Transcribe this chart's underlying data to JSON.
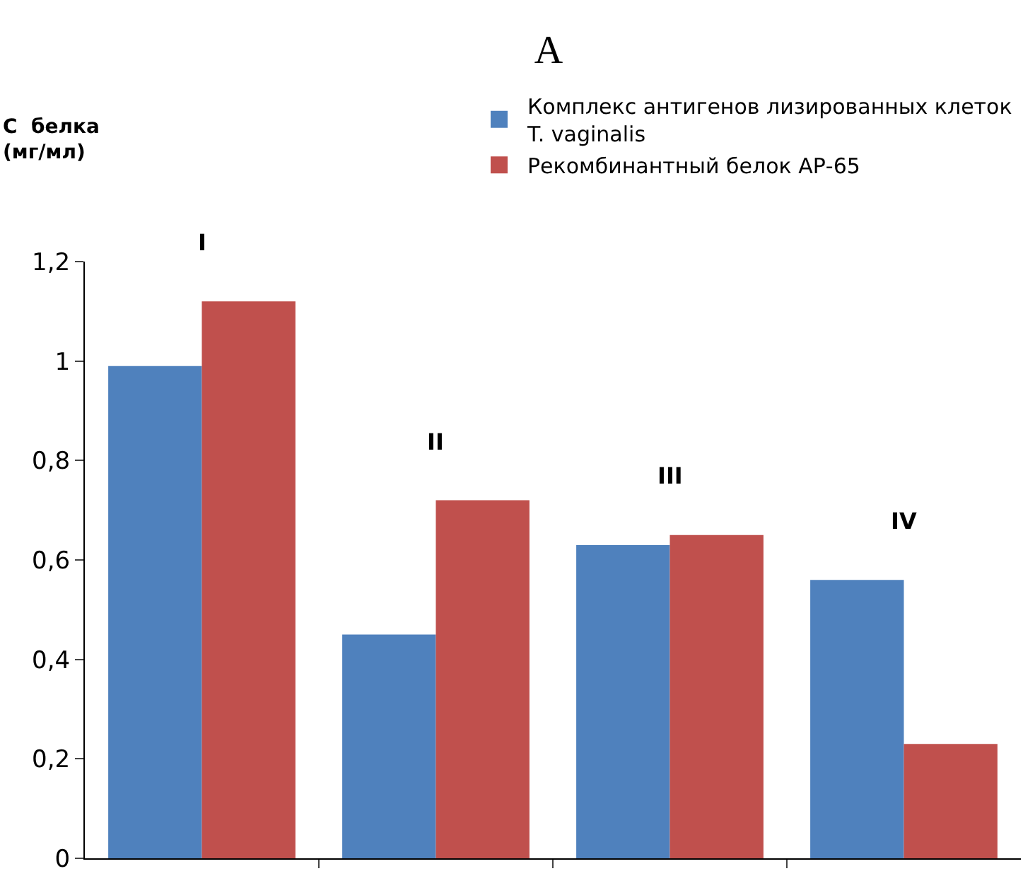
{
  "chart_data": {
    "type": "bar",
    "title": "A",
    "ylabel": "С  белка\n(мг/мл)",
    "categories": [
      null,
      null,
      null,
      null
    ],
    "series": [
      {
        "name": "Комплекс антигенов лизированных клеток T. vaginalis",
        "color": "#4f81bd",
        "values": [
          0.99,
          0.45,
          0.63,
          0.56
        ]
      },
      {
        "name": "Рекомбинантный белок АР-65",
        "color": "#c0504d",
        "values": [
          1.12,
          0.72,
          0.65,
          0.23
        ]
      }
    ],
    "annotations": [
      "I",
      "II",
      "III",
      "IV"
    ],
    "ylim": [
      0,
      1.2
    ],
    "yticks": [
      {
        "value": 0,
        "label": "0"
      },
      {
        "value": 0.2,
        "label": "0,2"
      },
      {
        "value": 0.4,
        "label": "0,4"
      },
      {
        "value": 0.6,
        "label": "0,6"
      },
      {
        "value": 0.8,
        "label": "0,8"
      },
      {
        "value": 1,
        "label": "1"
      },
      {
        "value": 1.2,
        "label": "1,2"
      }
    ],
    "grid": false,
    "legend": "top right"
  }
}
